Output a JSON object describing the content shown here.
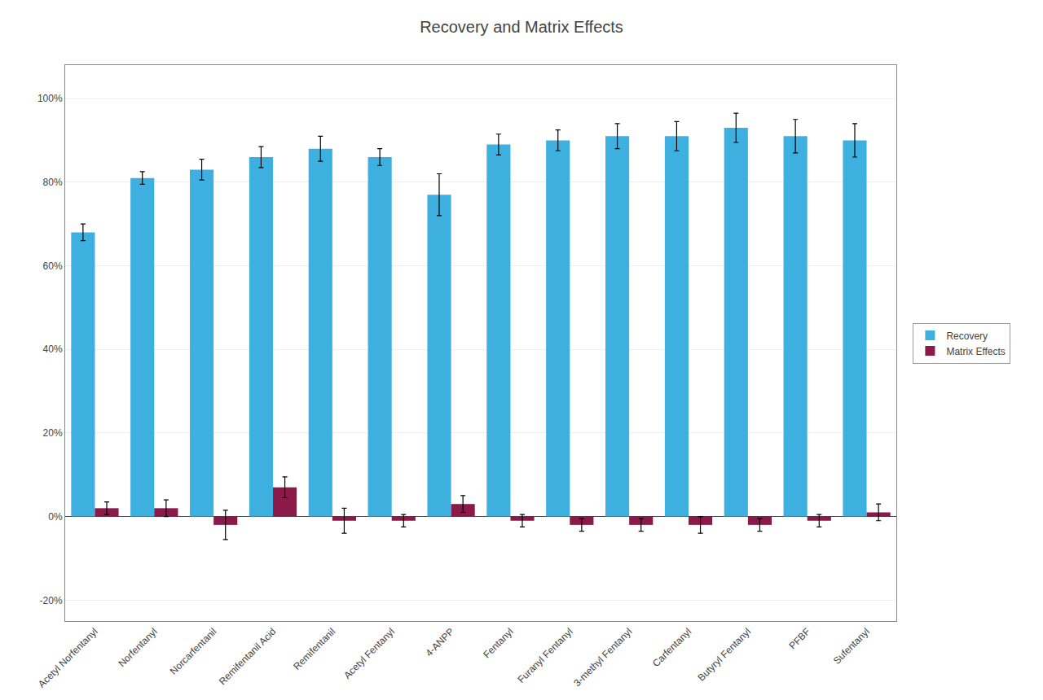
{
  "chart_data": {
    "type": "bar",
    "title": "Recovery and Matrix Effects",
    "categories": [
      "Acetyl Norfentanyl",
      "Norfentanyl",
      "Norcarfentanil",
      "Remifentanil Acid",
      "Remifentanil",
      "Acetyl Fentanyl",
      "4-ANPP",
      "Fentanyl",
      "Furanyl Fentanyl",
      "3-methyl Fentanyl",
      "Carfentanyl",
      "Butyryl Fentanyl",
      "PFBF",
      "Sufentanyl"
    ],
    "series": [
      {
        "name": "Recovery",
        "color": "#3EB0E0",
        "values": [
          68,
          81,
          83,
          86,
          88,
          86,
          77,
          89,
          90,
          91,
          91,
          93,
          91,
          90
        ],
        "errors": [
          2.0,
          1.5,
          2.5,
          2.5,
          3.0,
          2.0,
          5.0,
          2.5,
          2.5,
          3.0,
          3.5,
          3.5,
          4.0,
          4.0
        ]
      },
      {
        "name": "Matrix Effects",
        "color": "#8B1A4A",
        "values": [
          2,
          2,
          -2,
          7,
          -1,
          -1,
          3,
          -1,
          -2,
          -2,
          -2,
          -2,
          -1,
          1
        ],
        "errors": [
          1.5,
          2.0,
          3.5,
          2.5,
          3.0,
          1.5,
          2.0,
          1.5,
          1.5,
          1.5,
          2.0,
          1.5,
          1.5,
          2.0
        ]
      }
    ],
    "ylim": [
      -25,
      108
    ],
    "yticks": [
      {
        "value": -20,
        "label": "-20%"
      },
      {
        "value": 0,
        "label": "0%"
      },
      {
        "value": 20,
        "label": "20%"
      },
      {
        "value": 40,
        "label": "40%"
      },
      {
        "value": 60,
        "label": "60%"
      },
      {
        "value": 80,
        "label": "80%"
      },
      {
        "value": 100,
        "label": "100%"
      }
    ],
    "grid": true,
    "legend": "right"
  }
}
